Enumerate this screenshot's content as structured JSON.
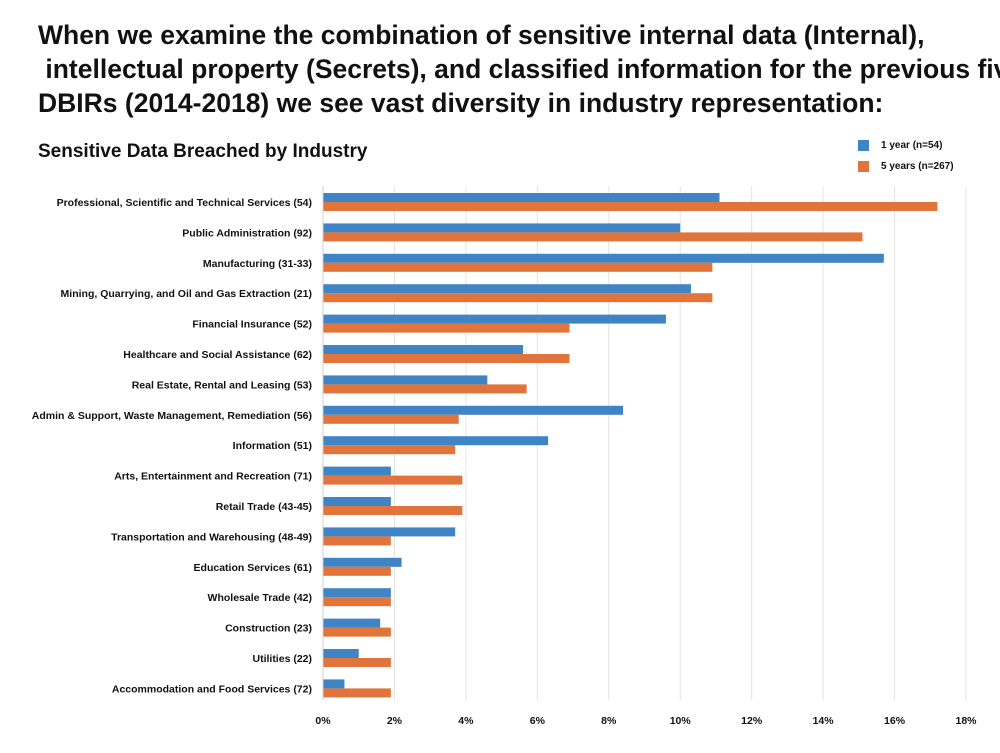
{
  "headline": {
    "line1": "When we examine the combination of sensitive internal data (Internal),",
    "line2": " intellectual property (Secrets), and classified information for the previous five",
    "line3": "DBIRs (2014-2018) we see vast diversity in industry representation:"
  },
  "colors": {
    "series_1": "#3f85c6",
    "series_2": "#e0743a",
    "grid": "#e3e3e3"
  },
  "chart_data": {
    "type": "bar",
    "orientation": "horizontal",
    "title": "Sensitive Data Breached by Industry",
    "categories": [
      "Professional, Scientific and Technical Services (54)",
      "Public Administration (92)",
      "Manufacturing (31-33)",
      "Mining, Quarrying, and Oil and Gas Extraction (21)",
      "Financial Insurance (52)",
      "Healthcare and Social Assistance (62)",
      "Real Estate, Rental and Leasing (53)",
      "Admin & Support, Waste Management, Remediation (56)",
      "Information (51)",
      "Arts, Entertainment and Recreation (71)",
      "Retail Trade (43-45)",
      "Transportation and Warehousing (48-49)",
      "Education Services (61)",
      "Wholesale Trade (42)",
      "Construction (23)",
      "Utilities (22)",
      "Accommodation and Food Services (72)"
    ],
    "series": [
      {
        "name": "1 year (n=54)",
        "values": [
          11.1,
          10.0,
          15.7,
          10.3,
          9.6,
          5.6,
          4.6,
          8.4,
          6.3,
          1.9,
          1.9,
          3.7,
          2.2,
          1.9,
          1.6,
          1.0,
          0.6
        ]
      },
      {
        "name": "5 years (n=267)",
        "values": [
          17.2,
          15.1,
          10.9,
          10.9,
          6.9,
          6.9,
          5.7,
          3.8,
          3.7,
          3.9,
          3.9,
          1.9,
          1.9,
          1.9,
          1.9,
          1.9,
          1.9
        ]
      }
    ],
    "xlim": [
      0,
      18
    ],
    "xticks": [
      "0%",
      "2%",
      "4%",
      "6%",
      "8%",
      "10%",
      "12%",
      "14%",
      "16%",
      "18%"
    ],
    "grid": "vertical",
    "legend": "top-right"
  }
}
